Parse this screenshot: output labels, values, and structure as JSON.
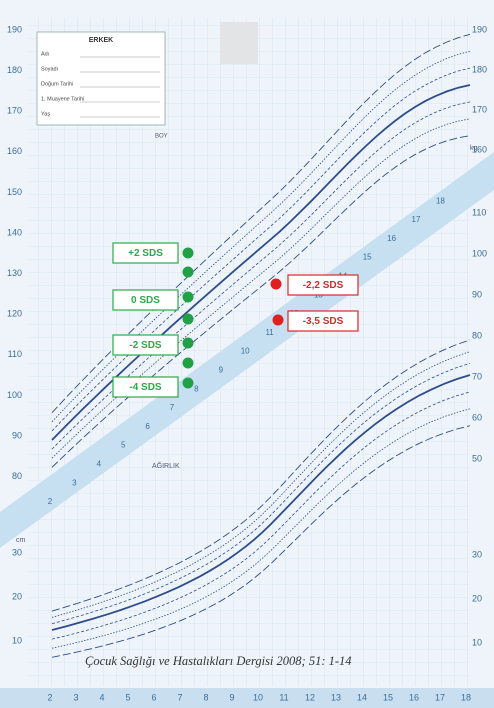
{
  "form": {
    "title": "ERKEK",
    "fields": [
      "Adı",
      "Soyadı",
      "Doğum Tarihi",
      "1. Muayene Tarihi",
      "Yaş"
    ]
  },
  "labels": {
    "height": "BOY",
    "weight": "AĞIRLIK",
    "cm": "cm",
    "kg": "kg"
  },
  "left_height_ticks": [
    190,
    180,
    170,
    160,
    150,
    140,
    130,
    120,
    110,
    100,
    90,
    80
  ],
  "left_weight_ticks": [
    30,
    20,
    10
  ],
  "right_height_ticks": [
    190,
    180,
    170,
    160
  ],
  "right_weight_ticks": [
    110,
    100,
    90,
    80,
    70,
    60,
    50
  ],
  "right_lower_ticks": [
    30,
    20,
    10
  ],
  "x_ticks": [
    2,
    3,
    4,
    5,
    6,
    7,
    8,
    9,
    10,
    11,
    12,
    13,
    14,
    15,
    16,
    17,
    18
  ],
  "band_ages": [
    2,
    3,
    4,
    5,
    6,
    7,
    8,
    9,
    10,
    11,
    12,
    13,
    14,
    15,
    16,
    17,
    18
  ],
  "annotations": {
    "green": [
      "+2 SDS",
      "0 SDS",
      "-2 SDS",
      "-4 SDS"
    ],
    "red": [
      "-2,2 SDS",
      "-3,5 SDS"
    ]
  },
  "citation": "Çocuk Sağlığı ve Hastalıkları Dergisi 2008; 51: 1-14"
}
